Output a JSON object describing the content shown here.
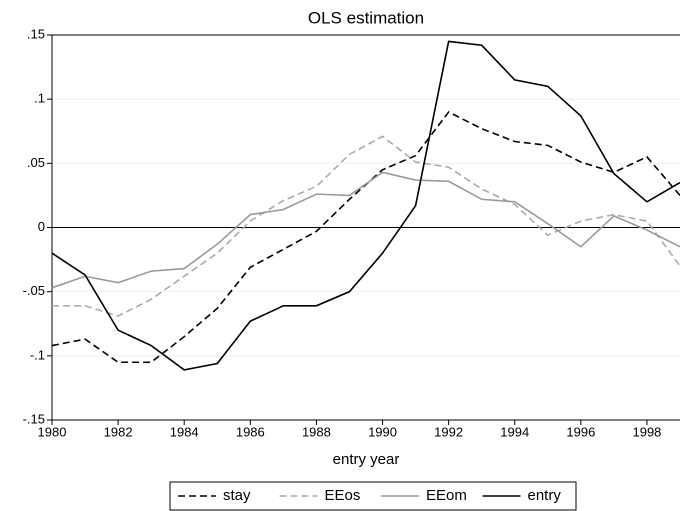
{
  "chart_data": {
    "type": "line",
    "title": "OLS estimation",
    "x_label": "entry year",
    "x": [
      1980,
      1981,
      1982,
      1983,
      1984,
      1985,
      1986,
      1987,
      1988,
      1989,
      1990,
      1991,
      1992,
      1993,
      1994,
      1995,
      1996,
      1997,
      1998,
      1999
    ],
    "series": [
      {
        "name": "stay",
        "color": "#000000",
        "dashed": true,
        "values": [
          -0.092,
          -0.087,
          -0.105,
          -0.105,
          -0.085,
          -0.063,
          -0.031,
          -0.017,
          -0.003,
          0.022,
          0.045,
          0.056,
          0.09,
          0.077,
          0.067,
          0.064,
          0.051,
          0.043,
          0.055,
          0.025
        ]
      },
      {
        "name": "EEos",
        "color": "#aaaaaa",
        "dashed": true,
        "values": [
          -0.061,
          -0.061,
          -0.069,
          -0.056,
          -0.038,
          -0.02,
          0.005,
          0.021,
          0.032,
          0.057,
          0.071,
          0.051,
          0.047,
          0.03,
          0.018,
          -0.006,
          0.005,
          0.01,
          0.005,
          -0.03
        ]
      },
      {
        "name": "EEom",
        "color": "#999999",
        "dashed": false,
        "values": [
          -0.047,
          -0.038,
          -0.043,
          -0.034,
          -0.032,
          -0.013,
          0.01,
          0.014,
          0.026,
          0.025,
          0.043,
          0.037,
          0.036,
          0.022,
          0.02,
          0.003,
          -0.015,
          0.009,
          -0.002,
          -0.015
        ]
      },
      {
        "name": "entry",
        "color": "#000000",
        "dashed": false,
        "values": [
          -0.02,
          -0.037,
          -0.08,
          -0.092,
          -0.111,
          -0.106,
          -0.073,
          -0.061,
          -0.061,
          -0.05,
          -0.02,
          0.017,
          0.145,
          0.142,
          0.115,
          0.11,
          0.087,
          0.042,
          0.02,
          0.035
        ]
      }
    ],
    "xlim": [
      1980,
      1999
    ],
    "xticks": [
      1980,
      1982,
      1984,
      1986,
      1988,
      1990,
      1992,
      1994,
      1996,
      1998
    ],
    "ylim": [
      -0.15,
      0.15
    ],
    "yticks": [
      {
        "value": -0.15,
        "label": "-.15"
      },
      {
        "value": -0.1,
        "label": "-.1"
      },
      {
        "value": -0.05,
        "label": "-.05"
      },
      {
        "value": 0,
        "label": "0"
      },
      {
        "value": 0.05,
        "label": ".05"
      },
      {
        "value": 0.1,
        "label": ".1"
      },
      {
        "value": 0.15,
        "label": ".15"
      }
    ],
    "grid": true,
    "zero_line": true,
    "legend": "bottom"
  }
}
